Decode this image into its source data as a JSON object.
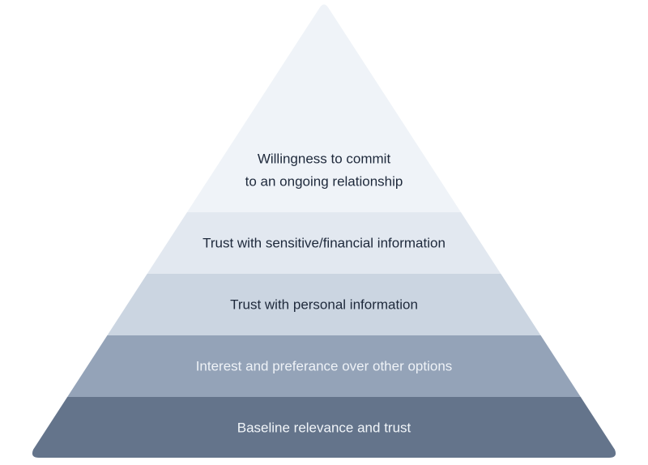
{
  "pyramid": {
    "tiers": [
      {
        "lines": [
          "Willingness to commit",
          "to an ongoing relationship"
        ],
        "fill": "#eff3f8",
        "text_color": "#1e293b"
      },
      {
        "lines": [
          "Trust with sensitive/financial information"
        ],
        "fill": "#e2e8f0",
        "text_color": "#1e293b"
      },
      {
        "lines": [
          "Trust with personal information"
        ],
        "fill": "#cbd5e1",
        "text_color": "#1e293b"
      },
      {
        "lines": [
          "Interest and preferance over other options"
        ],
        "fill": "#94a3b8",
        "text_color": "#eef2f7"
      },
      {
        "lines": [
          "Baseline relevance and trust"
        ],
        "fill": "#64748b",
        "text_color": "#f1f5f9"
      }
    ]
  }
}
